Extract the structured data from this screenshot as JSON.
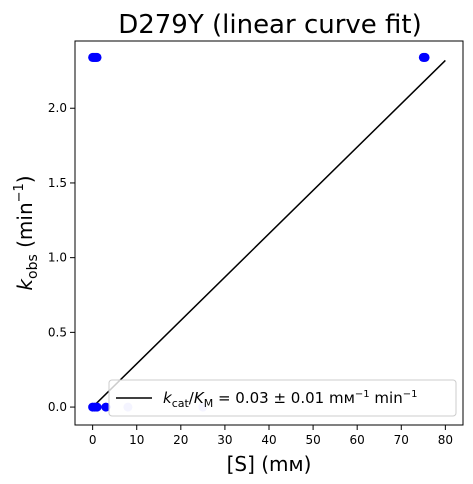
{
  "chart_data": {
    "type": "scatter",
    "title": "D279Y (linear curve fit)",
    "xlabel": "[S] (mм)",
    "ylabel_main": "k",
    "ylabel_sub": "obs",
    "ylabel_rest": " (min",
    "ylabel_sup": "−1",
    "ylabel_end": ")",
    "xlim": [
      -4,
      84
    ],
    "ylim": [
      -0.12,
      2.45
    ],
    "xticks": [
      0,
      10,
      20,
      30,
      40,
      50,
      60,
      70,
      80
    ],
    "yticks": [
      0.0,
      0.5,
      1.0,
      1.5,
      2.0
    ],
    "ytick_labels": [
      "0.0",
      "0.5",
      "1.0",
      "1.5",
      "2.0"
    ],
    "grid": false,
    "legend_position": "lower-right",
    "legend": {
      "k": "k",
      "k_sub": "cat",
      "slash": "/",
      "K": "K",
      "K_sub": "M",
      "value": " = 0.03 ± 0.01 mм",
      "sup1": "−1",
      "unit2": " min",
      "sup2": "−1"
    },
    "colors": {
      "points": "#0000ff",
      "points_faded": "#c8c8ff",
      "fit": "#000000"
    },
    "series": [
      {
        "role": "data",
        "x": [
          0,
          0.2,
          0.4,
          0.6,
          0.8,
          1.0,
          0,
          0.5,
          1.0,
          3.0,
          75,
          75.2,
          75.4
        ],
        "y": [
          2.34,
          2.34,
          2.34,
          2.34,
          2.34,
          2.34,
          0.0,
          0.0,
          0.0,
          0.0,
          2.34,
          2.34,
          2.34
        ]
      },
      {
        "role": "data_faded",
        "x": [
          8,
          25
        ],
        "y": [
          0.0,
          0.0
        ]
      },
      {
        "role": "fit",
        "x": [
          0,
          80
        ],
        "y": [
          0.0,
          2.32
        ]
      }
    ]
  }
}
